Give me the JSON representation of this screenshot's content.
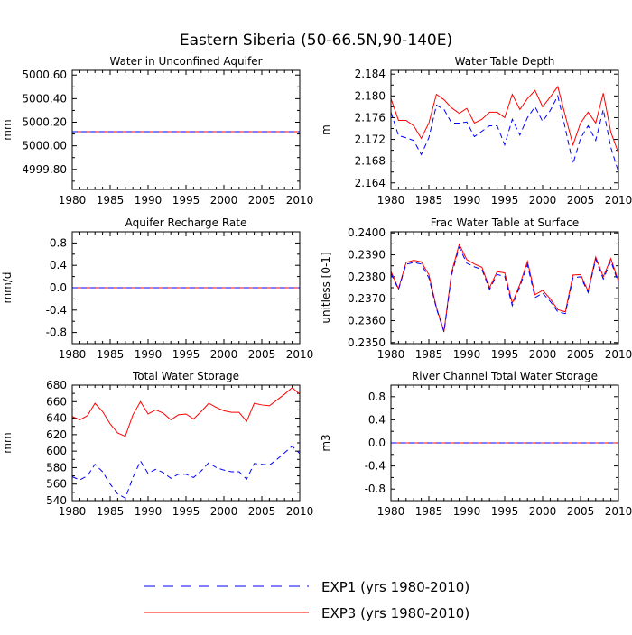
{
  "title": "Eastern Siberia (50-66.5N,90-140E)",
  "legend": {
    "placement": "bottom-center",
    "entries": [
      {
        "label": "EXP1 (yrs 1980-2010)",
        "color": "#0000ff",
        "dash": "dashed"
      },
      {
        "label": "EXP3 (yrs 1980-2010)",
        "color": "#ff0000",
        "dash": "solid"
      }
    ]
  },
  "chart_data": [
    {
      "type": "line",
      "title": "Water in Unconfined Aquifer",
      "xlabel": "",
      "ylabel": "mm",
      "xlim": [
        1980,
        2010
      ],
      "ylim": [
        4999.63,
        5000.64
      ],
      "xticks": [
        1980,
        1985,
        1990,
        1995,
        2000,
        2005,
        2010
      ],
      "yticks": [
        4999.8,
        5000.0,
        5000.2,
        5000.4,
        5000.6
      ],
      "ytick_labels": [
        "4999.80",
        "5000.00",
        "5000.20",
        "5000.40",
        "5000.60"
      ],
      "grid": false,
      "x": [
        1980,
        2010
      ],
      "series": [
        {
          "name": "EXP3 (yrs 1980-2010)",
          "color": "#ff0000",
          "dash": "solid",
          "values": [
            5000.12,
            5000.12
          ]
        },
        {
          "name": "EXP1 (yrs 1980-2010)",
          "color": "#0000ff",
          "dash": "dashed",
          "values": [
            5000.12,
            5000.12
          ]
        }
      ]
    },
    {
      "type": "line",
      "title": "Water Table Depth",
      "xlabel": "",
      "ylabel": "m",
      "xlim": [
        1980,
        2010
      ],
      "ylim": [
        2.1628,
        2.1847
      ],
      "xticks": [
        1980,
        1985,
        1990,
        1995,
        2000,
        2005,
        2010
      ],
      "yticks": [
        2.164,
        2.168,
        2.172,
        2.176,
        2.18,
        2.184
      ],
      "ytick_labels": [
        "2.164",
        "2.168",
        "2.172",
        "2.176",
        "2.180",
        "2.184"
      ],
      "grid": false,
      "x": [
        1980,
        1981,
        1982,
        1983,
        1984,
        1985,
        1986,
        1987,
        1988,
        1989,
        1990,
        1991,
        1992,
        1993,
        1994,
        1995,
        1996,
        1997,
        1998,
        1999,
        2000,
        2001,
        2002,
        2003,
        2004,
        2005,
        2006,
        2007,
        2008,
        2009,
        2010
      ],
      "series": [
        {
          "name": "EXP3 (yrs 1980-2010)",
          "color": "#ff0000",
          "dash": "solid",
          "values": [
            2.1795,
            2.1755,
            2.1755,
            2.1745,
            2.1722,
            2.175,
            2.1803,
            2.1793,
            2.1778,
            2.1768,
            2.1777,
            2.175,
            2.1757,
            2.177,
            2.177,
            2.176,
            2.1803,
            2.1775,
            2.1795,
            2.181,
            2.178,
            2.1798,
            2.1817,
            2.1763,
            2.171,
            2.175,
            2.177,
            2.175,
            2.1805,
            2.1733,
            2.1695
          ]
        },
        {
          "name": "EXP1 (yrs 1980-2010)",
          "color": "#0000ff",
          "dash": "dashed",
          "values": [
            2.177,
            2.1727,
            2.1723,
            2.1718,
            2.1692,
            2.1723,
            2.1783,
            2.1775,
            2.175,
            2.175,
            2.1752,
            2.1725,
            2.1735,
            2.1745,
            2.1745,
            2.171,
            2.1757,
            2.1728,
            2.176,
            2.178,
            2.1753,
            2.1773,
            2.18,
            2.174,
            2.1675,
            2.1722,
            2.1745,
            2.1718,
            2.1775,
            2.1705,
            2.166
          ]
        }
      ]
    },
    {
      "type": "line",
      "title": "Aquifer Recharge Rate",
      "xlabel": "",
      "ylabel": "mm/d",
      "xlim": [
        1980,
        2010
      ],
      "ylim": [
        -1.0,
        1.0
      ],
      "xticks": [
        1980,
        1985,
        1990,
        1995,
        2000,
        2005,
        2010
      ],
      "yticks": [
        -0.8,
        -0.4,
        0.0,
        0.4,
        0.8
      ],
      "ytick_labels": [
        "-0.8",
        "-0.4",
        "0.0",
        "0.4",
        "0.8"
      ],
      "grid": false,
      "x": [
        1980,
        2010
      ],
      "series": [
        {
          "name": "EXP3 (yrs 1980-2010)",
          "color": "#ff0000",
          "dash": "solid",
          "values": [
            0.0,
            0.0
          ]
        },
        {
          "name": "EXP1 (yrs 1980-2010)",
          "color": "#0000ff",
          "dash": "dashed",
          "values": [
            0.0,
            0.0
          ]
        }
      ]
    },
    {
      "type": "line",
      "title": "Frac Water Table at Surface",
      "xlabel": "",
      "ylabel": "unitless [0-1]",
      "xlim": [
        1980,
        2010
      ],
      "ylim": [
        0.23495,
        0.24005
      ],
      "xticks": [
        1980,
        1985,
        1990,
        1995,
        2000,
        2005,
        2010
      ],
      "yticks": [
        0.235,
        0.236,
        0.237,
        0.238,
        0.239,
        0.24
      ],
      "ytick_labels": [
        "0.2350",
        "0.2360",
        "0.2370",
        "0.2380",
        "0.2390",
        "0.2400"
      ],
      "grid": false,
      "x": [
        1980,
        1981,
        1982,
        1983,
        1984,
        1985,
        1986,
        1987,
        1988,
        1989,
        1990,
        1991,
        1992,
        1993,
        1994,
        1995,
        1996,
        1997,
        1998,
        1999,
        2000,
        2001,
        2002,
        2003,
        2004,
        2005,
        2006,
        2007,
        2008,
        2009,
        2010
      ],
      "series": [
        {
          "name": "EXP3 (yrs 1980-2010)",
          "color": "#ff0000",
          "dash": "solid",
          "values": [
            0.23825,
            0.23745,
            0.23865,
            0.23875,
            0.23868,
            0.2381,
            0.2366,
            0.23552,
            0.2382,
            0.23948,
            0.23878,
            0.23858,
            0.23843,
            0.2375,
            0.23823,
            0.23818,
            0.2368,
            0.23765,
            0.2387,
            0.23718,
            0.23738,
            0.237,
            0.2365,
            0.2364,
            0.23808,
            0.2381,
            0.23735,
            0.2389,
            0.238,
            0.23883,
            0.2378
          ]
        },
        {
          "name": "EXP1 (yrs 1980-2010)",
          "color": "#0000ff",
          "dash": "dashed",
          "values": [
            0.23815,
            0.23742,
            0.23857,
            0.23865,
            0.23858,
            0.23795,
            0.23655,
            0.23548,
            0.23808,
            0.23935,
            0.23862,
            0.23845,
            0.23833,
            0.23742,
            0.2381,
            0.23802,
            0.23668,
            0.23755,
            0.23855,
            0.23705,
            0.23725,
            0.23688,
            0.2364,
            0.23632,
            0.23795,
            0.238,
            0.23728,
            0.2388,
            0.2379,
            0.23872,
            0.2377
          ]
        }
      ]
    },
    {
      "type": "line",
      "title": "Total Water Storage",
      "xlabel": "",
      "ylabel": "mm",
      "xlim": [
        1980,
        2010
      ],
      "ylim": [
        540,
        680
      ],
      "xticks": [
        1980,
        1985,
        1990,
        1995,
        2000,
        2005,
        2010
      ],
      "yticks": [
        540,
        560,
        580,
        600,
        620,
        640,
        660,
        680
      ],
      "ytick_labels": [
        "540",
        "560",
        "580",
        "600",
        "620",
        "640",
        "660",
        "680"
      ],
      "grid": false,
      "x": [
        1980,
        1981,
        1982,
        1983,
        1984,
        1985,
        1986,
        1987,
        1988,
        1989,
        1990,
        1991,
        1992,
        1993,
        1994,
        1995,
        1996,
        1997,
        1998,
        1999,
        2000,
        2001,
        2002,
        2003,
        2004,
        2005,
        2006,
        2007,
        2008,
        2009,
        2010
      ],
      "series": [
        {
          "name": "EXP3 (yrs 1980-2010)",
          "color": "#ff0000",
          "dash": "solid",
          "values": [
            642,
            638,
            643,
            658,
            648,
            633,
            622,
            618,
            644,
            660,
            645,
            650,
            646,
            638,
            644,
            645,
            639,
            648,
            658,
            653,
            649,
            647,
            647,
            636,
            658,
            656,
            655,
            662,
            669,
            677,
            669
          ]
        },
        {
          "name": "EXP1 (yrs 1980-2010)",
          "color": "#0000ff",
          "dash": "dashed",
          "values": [
            569,
            565,
            570,
            584,
            575,
            560,
            548,
            543,
            568,
            588,
            573,
            578,
            574,
            567,
            572,
            572,
            568,
            576,
            586,
            580,
            577,
            575,
            575,
            566,
            585,
            584,
            583,
            590,
            598,
            606,
            597
          ]
        }
      ]
    },
    {
      "type": "line",
      "title": "River Channel Total Water Storage",
      "xlabel": "",
      "ylabel": "m3",
      "xlim": [
        1980,
        2010
      ],
      "ylim": [
        -1.0,
        1.0
      ],
      "xticks": [
        1980,
        1985,
        1990,
        1995,
        2000,
        2005,
        2010
      ],
      "yticks": [
        -0.8,
        -0.4,
        0.0,
        0.4,
        0.8
      ],
      "ytick_labels": [
        "-0.8",
        "-0.4",
        "0.0",
        "0.4",
        "0.8"
      ],
      "grid": false,
      "x": [
        1980,
        2010
      ],
      "series": [
        {
          "name": "EXP3 (yrs 1980-2010)",
          "color": "#ff0000",
          "dash": "solid",
          "values": [
            0.0,
            0.0
          ]
        },
        {
          "name": "EXP1 (yrs 1980-2010)",
          "color": "#0000ff",
          "dash": "dashed",
          "values": [
            0.0,
            0.0
          ]
        }
      ]
    }
  ]
}
